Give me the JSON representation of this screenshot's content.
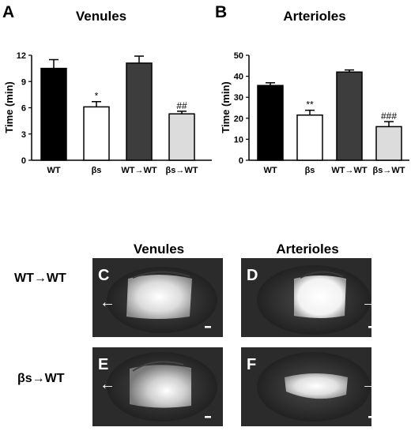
{
  "charts": {
    "A": {
      "panel_letter": "A",
      "chart_data": {
        "type": "bar",
        "title": "Venules",
        "ylabel": "Time (min)",
        "xlabel": "",
        "ylim": [
          0,
          12
        ],
        "yticks": [
          "0",
          "3",
          "6",
          "9",
          "12"
        ],
        "categories": [
          "WT",
          "βs",
          "WT→WT",
          "βs→WT"
        ],
        "values": [
          10.5,
          6.1,
          11.1,
          5.3
        ],
        "errors": [
          1.0,
          0.6,
          0.8,
          0.3
        ],
        "annotations": [
          "",
          "*",
          "",
          "##"
        ],
        "bar_colors": [
          "#000000",
          "#ffffff",
          "#3d3d3d",
          "#dcdcdc"
        ]
      }
    },
    "B": {
      "panel_letter": "B",
      "chart_data": {
        "type": "bar",
        "title": "Arterioles",
        "ylabel": "Time (min)",
        "xlabel": "",
        "ylim": [
          0,
          50
        ],
        "yticks": [
          "0",
          "10",
          "20",
          "30",
          "40",
          "50"
        ],
        "categories": [
          "WT",
          "βs",
          "WT→WT",
          "βs→WT"
        ],
        "values": [
          35.6,
          21.5,
          42.0,
          16.0
        ],
        "errors": [
          1.3,
          2.3,
          1.0,
          2.4
        ],
        "annotations": [
          "",
          "**",
          "",
          "###"
        ],
        "bar_colors": [
          "#000000",
          "#ffffff",
          "#3d3d3d",
          "#dcdcdc"
        ]
      }
    }
  },
  "images": {
    "col_titles": [
      "Venules",
      "Arterioles"
    ],
    "row_titles": [
      "WT→WT",
      "βs→WT"
    ],
    "panels": [
      {
        "letter": "C",
        "arrow": "←"
      },
      {
        "letter": "D",
        "arrow": "→"
      },
      {
        "letter": "E",
        "arrow": "←"
      },
      {
        "letter": "F",
        "arrow": "→"
      }
    ]
  }
}
